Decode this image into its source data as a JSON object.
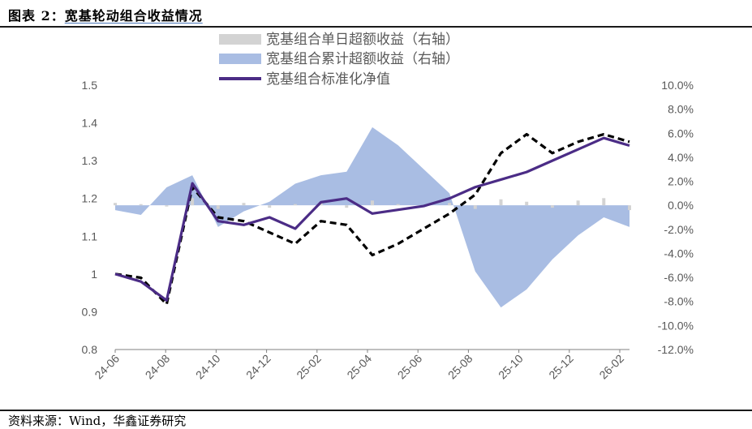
{
  "header": {
    "figure_label": "图表 2：",
    "figure_title": "宽基轮动组合收益情况"
  },
  "footer": {
    "source": "资料来源：Wind，华鑫证券研究"
  },
  "colors": {
    "daily_excess": "#d3d3d3",
    "cumulative_excess": "#a9bde3",
    "nav": "#4b2c86",
    "benchmark": "#000000",
    "axis": "#808080",
    "text": "#595959"
  },
  "chart_data": {
    "type": "line",
    "title": "",
    "xlabel": "",
    "ylabel": "",
    "x_tick_labels": [
      "24-06",
      "24-08",
      "24-10",
      "24-12",
      "25-02",
      "25-04",
      "25-06",
      "25-08",
      "25-10",
      "25-12",
      "26-02"
    ],
    "left_axis": {
      "range": [
        0.8,
        1.5
      ],
      "ticks": [
        0.8,
        0.9,
        1,
        1.1,
        1.2,
        1.3,
        1.4,
        1.5
      ],
      "tick_labels": [
        "0.8",
        "0.9",
        "1",
        "1.1",
        "1.2",
        "1.3",
        "1.4",
        "1.5"
      ]
    },
    "right_axis": {
      "range": [
        -12,
        10
      ],
      "ticks": [
        -12,
        -10,
        -8,
        -6,
        -4,
        -2,
        0,
        2,
        4,
        6,
        8,
        10
      ],
      "tick_labels": [
        "-12.0%",
        "-10.0%",
        "-8.0%",
        "-6.0%",
        "-4.0%",
        "-2.0%",
        "0.0%",
        "2.0%",
        "4.0%",
        "6.0%",
        "8.0%",
        "10.0%"
      ]
    },
    "legend_position": "top-center",
    "x": [
      "24-06",
      "24-07",
      "24-08",
      "24-09",
      "24-10",
      "24-11",
      "24-12",
      "25-01",
      "25-02",
      "25-03",
      "25-04",
      "25-05",
      "25-06",
      "25-07",
      "25-08",
      "25-09",
      "25-10",
      "25-11",
      "25-12",
      "26-01",
      "26-02"
    ],
    "series": [
      {
        "name": "宽基组合单日超额收益（右轴）",
        "type": "bar",
        "axis": "right",
        "values": [
          0.2,
          0.1,
          -0.1,
          0.6,
          -0.3,
          0.2,
          -0.2,
          0.1,
          0.2,
          -0.2,
          0.4,
          0.1,
          -0.1,
          0.2,
          -0.3,
          0.5,
          0.3,
          -0.2,
          0.4,
          0.6,
          -0.4
        ]
      },
      {
        "name": "宽基组合累计超额收益（右轴）",
        "type": "area",
        "axis": "right",
        "values": [
          -0.4,
          -0.8,
          1.5,
          2.5,
          -1.8,
          -0.5,
          0.3,
          1.8,
          2.5,
          2.8,
          6.5,
          5.0,
          3.0,
          1.0,
          -5.5,
          -8.5,
          -7.0,
          -4.5,
          -2.5,
          -1.0,
          -1.8
        ]
      },
      {
        "name": "宽基组合标准化净值",
        "type": "line",
        "axis": "left",
        "values": [
          1.0,
          0.98,
          0.93,
          1.24,
          1.14,
          1.13,
          1.15,
          1.12,
          1.19,
          1.2,
          1.16,
          1.17,
          1.18,
          1.2,
          1.23,
          1.25,
          1.27,
          1.3,
          1.33,
          1.36,
          1.34
        ]
      },
      {
        "name": "",
        "type": "line",
        "axis": "left",
        "style": "dashed",
        "values": [
          1.0,
          0.99,
          0.92,
          1.23,
          1.15,
          1.14,
          1.11,
          1.08,
          1.14,
          1.13,
          1.05,
          1.08,
          1.12,
          1.16,
          1.21,
          1.32,
          1.37,
          1.32,
          1.35,
          1.37,
          1.35
        ]
      }
    ]
  }
}
